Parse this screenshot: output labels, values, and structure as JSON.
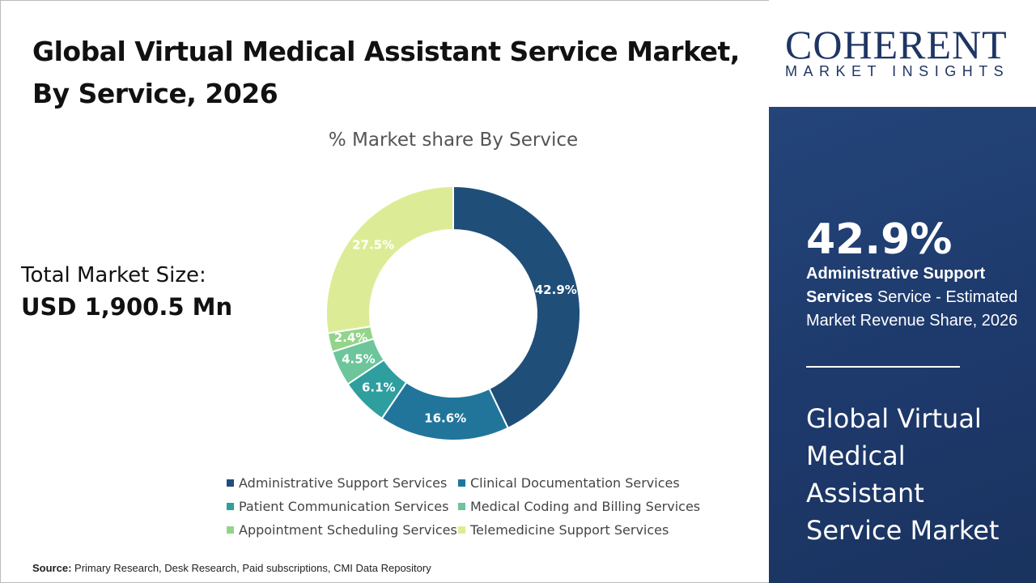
{
  "title_line1": "Global Virtual Medical Assistant Service Market,",
  "title_line2": "By Service, 2026",
  "total_market": {
    "label": "Total Market Size:",
    "value": "USD 1,900.5 Mn"
  },
  "source": {
    "label": "Source:",
    "text": " Primary Research, Desk Research, Paid subscriptions, CMI Data Repository"
  },
  "logo": {
    "big": "COHERENT",
    "small": "MARKET INSIGHTS"
  },
  "panel": {
    "pct": "42.9%",
    "bold": "Administrative Support Services",
    "rest": " Service - Estimated Market Revenue Share, 2026",
    "market": "Global Virtual Medical Assistant Service Market"
  },
  "chart_data": {
    "type": "pie",
    "donut": true,
    "title": "% Market share By Service",
    "legend_position": "bottom",
    "categories": [
      "Administrative Support Services",
      "Clinical Documentation Services",
      "Patient Communication Services",
      "Medical Coding and Billing Services",
      "Appointment Scheduling Services",
      "Telemedicine Support Services"
    ],
    "values": [
      42.9,
      16.6,
      6.1,
      4.5,
      2.4,
      27.5
    ],
    "labels": [
      "42.9%",
      "16.6%",
      "6.1%",
      "4.5%",
      "2.4%",
      "27.5%"
    ],
    "colors": [
      "#1f4e79",
      "#21759b",
      "#2e9e9e",
      "#6cc59b",
      "#93d48a",
      "#dcec96"
    ]
  }
}
